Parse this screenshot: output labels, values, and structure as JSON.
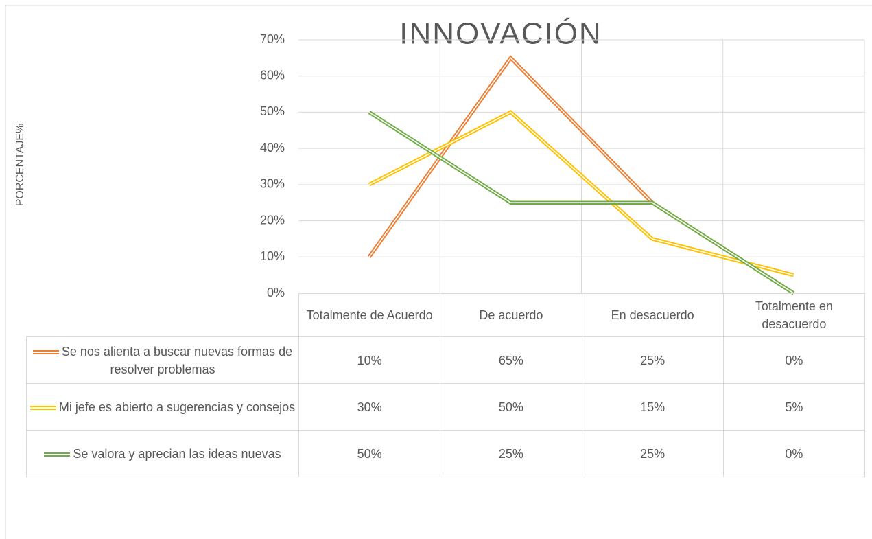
{
  "chart_data": {
    "type": "line",
    "title": "INNOVACIÓN",
    "y_label": "PORCENTAJE%",
    "categories": [
      "Totalmente de Acuerdo",
      "De acuerdo",
      "En desacuerdo",
      "Totalmente en desacuerdo"
    ],
    "series": [
      {
        "name": "Se nos alienta a buscar nuevas formas de resolver problemas",
        "color": "#ED7D31",
        "values": [
          10,
          65,
          25,
          0
        ],
        "value_labels": [
          "10%",
          "65%",
          "25%",
          "0%"
        ]
      },
      {
        "name": "Mi jefe es abierto a sugerencias y consejos",
        "color": "#FFC000",
        "values": [
          30,
          50,
          15,
          5
        ],
        "value_labels": [
          "30%",
          "50%",
          "15%",
          "5%"
        ]
      },
      {
        "name": "Se valora y aprecian las ideas nuevas",
        "color": "#70AD47",
        "values": [
          50,
          25,
          25,
          0
        ],
        "value_labels": [
          "50%",
          "25%",
          "25%",
          "0%"
        ]
      }
    ],
    "ylim": [
      0,
      70
    ],
    "yticks": [
      {
        "value": 0,
        "label": "0%"
      },
      {
        "value": 10,
        "label": "10%"
      },
      {
        "value": 20,
        "label": "20%"
      },
      {
        "value": 30,
        "label": "30%"
      },
      {
        "value": 40,
        "label": "40%"
      },
      {
        "value": 50,
        "label": "50%"
      },
      {
        "value": 60,
        "label": "60%"
      },
      {
        "value": 70,
        "label": "70%"
      }
    ],
    "grid": true
  }
}
